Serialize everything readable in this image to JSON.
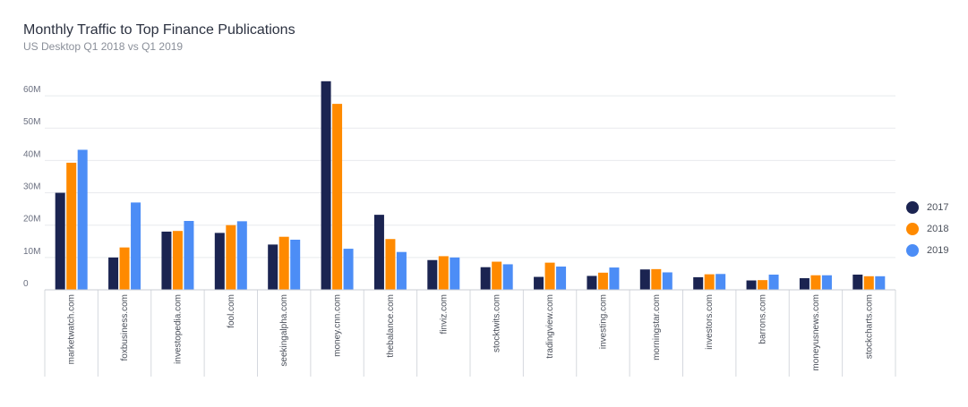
{
  "chart_data": {
    "type": "bar",
    "title": "Monthly Traffic to Top Finance Publications",
    "subtitle": "US Desktop Q1 2018 vs Q1 2019",
    "categories": [
      "marketwatch.com",
      "foxbusiness.com",
      "investopedia.com",
      "fool.com",
      "seekingalpha.com",
      "money.cnn.com",
      "thebalance.com",
      "finviz.com",
      "stocktwits.com",
      "tradingview.com",
      "investing.com",
      "morningstar.com",
      "investors.com",
      "barrons.com",
      "moneyusnews.com",
      "stockcharts.com"
    ],
    "series": [
      {
        "name": "2017",
        "color": "#1b2451",
        "values": [
          30,
          10,
          18,
          17.6,
          14,
          64.5,
          23.2,
          9.2,
          7,
          4,
          4.3,
          6.3,
          3.9,
          2.9,
          3.6,
          4.7
        ]
      },
      {
        "name": "2018",
        "color": "#ff8a00",
        "values": [
          39.3,
          13.1,
          18.2,
          20,
          16.4,
          57.5,
          15.7,
          10.4,
          8.7,
          8.4,
          5.3,
          6.4,
          4.8,
          3,
          4.5,
          4.2
        ]
      },
      {
        "name": "2019",
        "color": "#4c8df6",
        "values": [
          43.3,
          27,
          21.3,
          21.2,
          15.5,
          12.7,
          11.7,
          10,
          7.9,
          7.2,
          6.9,
          5.4,
          4.9,
          4.7,
          4.5,
          4.2
        ]
      }
    ],
    "ylim": [
      0,
      65
    ],
    "yticks": [
      0,
      10,
      20,
      30,
      40,
      50,
      60
    ],
    "ytick_labels": [
      "0",
      "10M",
      "20M",
      "30M",
      "40M",
      "50M",
      "60M"
    ],
    "grid": true,
    "legend_position": "right"
  }
}
